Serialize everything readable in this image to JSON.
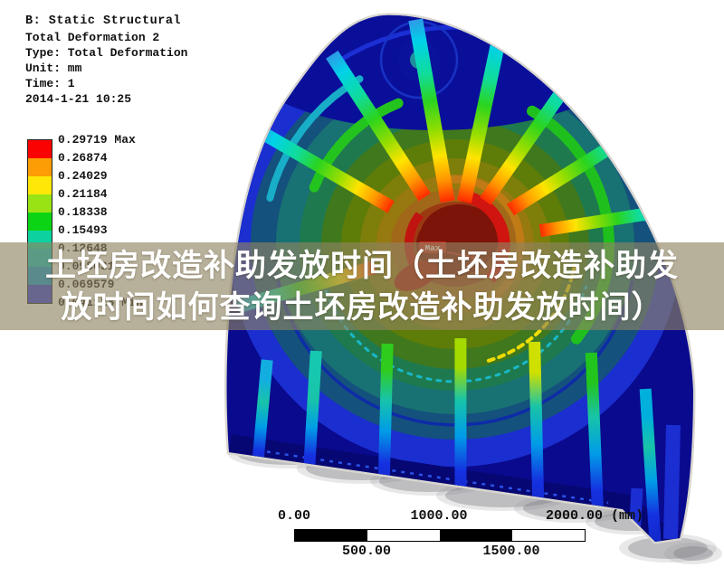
{
  "window": {
    "background": "#ffffff"
  },
  "header": {
    "title": "B: Static Structural",
    "lines": [
      "Total Deformation 2",
      "Type: Total Deformation",
      "Unit: mm",
      "Time: 1",
      "2014-1-21 10:25"
    ]
  },
  "legend": {
    "labels": [
      "0.29719 Max",
      "0.26874",
      "0.24029",
      "0.21184",
      "0.18338",
      "0.15493",
      "0.12648",
      "0.098031",
      "0.069579",
      "0.041128 Min"
    ],
    "colors": [
      "#fa0202",
      "#fc9d05",
      "#ffe808",
      "#99e314",
      "#0ad414",
      "#0cd2a0",
      "#00c4c8",
      "#0095d8",
      "#2431de"
    ]
  },
  "overlay": {
    "line1": "土坯房改造补助发放时间（土坯房改造补助发",
    "line2": "放时间如何查询土坯房改造补助发放时间）",
    "background": "rgba(142,132,97,0.64)",
    "text_color": "#ffffff"
  },
  "annotations": {
    "max_tag": "Max"
  },
  "scale_bar": {
    "top_labels": [
      "0.00",
      "1000.00",
      "2000.00 (mm)"
    ],
    "bottom_labels": [
      "500.00",
      "1500.00"
    ],
    "segment_colors": [
      "#000000",
      "#ffffff",
      "#000000",
      "#ffffff"
    ]
  },
  "model_colors": {
    "rim": "#0a0a8e",
    "center_max": "#7c140a",
    "halo": "#d8d6cf"
  }
}
